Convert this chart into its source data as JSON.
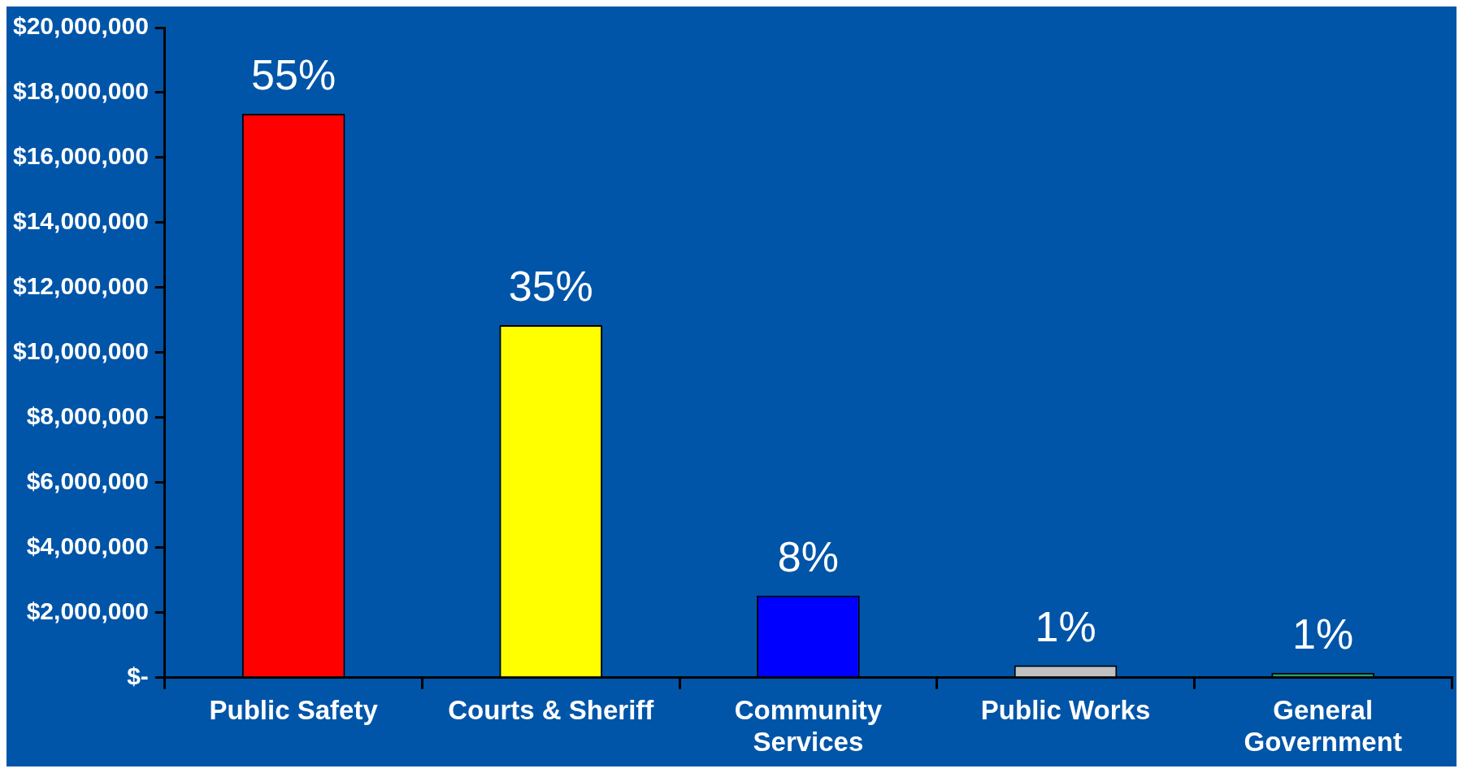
{
  "chart_data": {
    "type": "bar",
    "categories": [
      "Public Safety",
      "Courts & Sheriff",
      "Community Services",
      "Public Works",
      "General Government"
    ],
    "values": [
      17350000,
      10850000,
      2530000,
      380000,
      150000
    ],
    "colors": [
      "#ff0000",
      "#ffff00",
      "#0000ff",
      "#c0c0c0",
      "#339966"
    ],
    "annotations": [
      {
        "text": "55%",
        "x": "Public Safety",
        "y": 17350000
      },
      {
        "text": "35%",
        "x": "Courts & Sheriff",
        "y": 10850000
      },
      {
        "text": "8%",
        "x": "Community Services",
        "y": 2530000
      },
      {
        "text": "1%",
        "x": "Public Works",
        "y": 380000
      },
      {
        "text": "1%",
        "x": "General Government",
        "y": 150000
      }
    ],
    "ylim": [
      0,
      20000000
    ],
    "yticks": [
      {
        "value": 0,
        "label": "$-"
      },
      {
        "value": 2000000,
        "label": "$2,000,000"
      },
      {
        "value": 4000000,
        "label": "$4,000,000"
      },
      {
        "value": 6000000,
        "label": "$6,000,000"
      },
      {
        "value": 8000000,
        "label": "$8,000,000"
      },
      {
        "value": 10000000,
        "label": "$10,000,000"
      },
      {
        "value": 12000000,
        "label": "$12,000,000"
      },
      {
        "value": 14000000,
        "label": "$14,000,000"
      },
      {
        "value": 16000000,
        "label": "$16,000,000"
      },
      {
        "value": 18000000,
        "label": "$18,000,000"
      },
      {
        "value": 20000000,
        "label": "$20,000,000"
      }
    ],
    "grid": false,
    "legend": false
  }
}
